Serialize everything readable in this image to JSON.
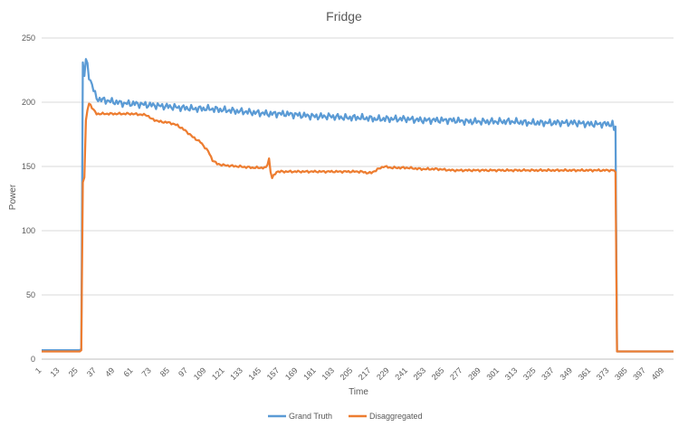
{
  "chart_data": {
    "type": "line",
    "title": "Fridge",
    "xlabel": "Time",
    "ylabel": "Power",
    "xlim": [
      1,
      415
    ],
    "ylim": [
      0,
      250
    ],
    "yticks": [
      0,
      50,
      100,
      150,
      200,
      250
    ],
    "xticks": [
      "1",
      "13",
      "25",
      "37",
      "49",
      "61",
      "73",
      "85",
      "97",
      "109",
      "121",
      "133",
      "145",
      "157",
      "169",
      "181",
      "193",
      "205",
      "217",
      "229",
      "241",
      "253",
      "265",
      "277",
      "289",
      "301",
      "313",
      "325",
      "337",
      "349",
      "361",
      "373",
      "385",
      "397",
      "409"
    ],
    "grid": true,
    "legend_position": "bottom",
    "series": [
      {
        "name": "Grand Truth",
        "color": "#5B9BD5",
        "points": [
          [
            1,
            7
          ],
          [
            26,
            7
          ],
          [
            27,
            8
          ],
          [
            28,
            230
          ],
          [
            29,
            222
          ],
          [
            30,
            233
          ],
          [
            31,
            228
          ],
          [
            32,
            220
          ],
          [
            34,
            214
          ],
          [
            36,
            206
          ],
          [
            37,
            203
          ],
          [
            40,
            202
          ],
          [
            45,
            201
          ],
          [
            50,
            200
          ],
          [
            55,
            199
          ],
          [
            60,
            199
          ],
          [
            70,
            198
          ],
          [
            80,
            197
          ],
          [
            90,
            196
          ],
          [
            100,
            195
          ],
          [
            110,
            195
          ],
          [
            120,
            194
          ],
          [
            130,
            193
          ],
          [
            140,
            192
          ],
          [
            150,
            191
          ],
          [
            160,
            191
          ],
          [
            170,
            190
          ],
          [
            180,
            189
          ],
          [
            190,
            189
          ],
          [
            200,
            188
          ],
          [
            210,
            188
          ],
          [
            220,
            187
          ],
          [
            230,
            187
          ],
          [
            240,
            187
          ],
          [
            250,
            186
          ],
          [
            260,
            186
          ],
          [
            270,
            186
          ],
          [
            280,
            185
          ],
          [
            290,
            185
          ],
          [
            300,
            185
          ],
          [
            310,
            185
          ],
          [
            320,
            184
          ],
          [
            330,
            184
          ],
          [
            340,
            184
          ],
          [
            350,
            184
          ],
          [
            360,
            183
          ],
          [
            370,
            183
          ],
          [
            375,
            183
          ],
          [
            376,
            179
          ],
          [
            377,
            181
          ],
          [
            378,
            6
          ],
          [
            380,
            6
          ],
          [
            390,
            6
          ],
          [
            400,
            6
          ],
          [
            410,
            6
          ],
          [
            415,
            6
          ]
        ]
      },
      {
        "name": "Disaggregated",
        "color": "#ED7D31",
        "points": [
          [
            1,
            6
          ],
          [
            26,
            6
          ],
          [
            27,
            7
          ],
          [
            28,
            138
          ],
          [
            29,
            142
          ],
          [
            30,
            185
          ],
          [
            31,
            194
          ],
          [
            32,
            199
          ],
          [
            33,
            198
          ],
          [
            35,
            194
          ],
          [
            37,
            191
          ],
          [
            45,
            191
          ],
          [
            50,
            191
          ],
          [
            60,
            191
          ],
          [
            70,
            190
          ],
          [
            73,
            187
          ],
          [
            78,
            185
          ],
          [
            85,
            184
          ],
          [
            90,
            182
          ],
          [
            95,
            178
          ],
          [
            100,
            173
          ],
          [
            105,
            169
          ],
          [
            110,
            162
          ],
          [
            113,
            155
          ],
          [
            116,
            152
          ],
          [
            120,
            151
          ],
          [
            130,
            150
          ],
          [
            140,
            149
          ],
          [
            148,
            149
          ],
          [
            149,
            152
          ],
          [
            150,
            156
          ],
          [
            151,
            146
          ],
          [
            152,
            141
          ],
          [
            155,
            146
          ],
          [
            170,
            146
          ],
          [
            190,
            146
          ],
          [
            210,
            146
          ],
          [
            215,
            145
          ],
          [
            217,
            145
          ],
          [
            220,
            147
          ],
          [
            225,
            150
          ],
          [
            230,
            149
          ],
          [
            240,
            149
          ],
          [
            250,
            148
          ],
          [
            260,
            148
          ],
          [
            270,
            147
          ],
          [
            280,
            147
          ],
          [
            290,
            147
          ],
          [
            300,
            147
          ],
          [
            310,
            147
          ],
          [
            320,
            147
          ],
          [
            330,
            147
          ],
          [
            340,
            147
          ],
          [
            350,
            147
          ],
          [
            360,
            147
          ],
          [
            370,
            147
          ],
          [
            376,
            147
          ],
          [
            377,
            145
          ],
          [
            378,
            6
          ],
          [
            380,
            6
          ],
          [
            390,
            6
          ],
          [
            400,
            6
          ],
          [
            410,
            6
          ],
          [
            415,
            6
          ]
        ]
      }
    ]
  }
}
